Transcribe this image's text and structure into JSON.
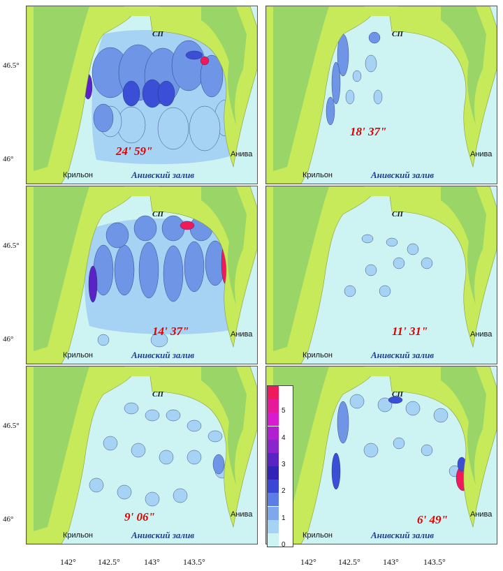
{
  "labels": {
    "port": "СП",
    "cape_krilon": "Крильон",
    "aniva": "Анива",
    "bay": "Анивский залив"
  },
  "panels": [
    {
      "time": "24' 59\""
    },
    {
      "time": "18' 37\""
    },
    {
      "time": "14' 37\""
    },
    {
      "time": "11' 31\""
    },
    {
      "time": "9' 06\""
    },
    {
      "time": "6' 49\""
    }
  ],
  "lat_ticks": [
    "46.5°",
    "46°"
  ],
  "lon_ticks": [
    "142°",
    "142.5°",
    "143°",
    "143.5°"
  ],
  "legend": {
    "labels": [
      "0",
      "1",
      "2",
      "3",
      "4",
      "5"
    ],
    "colors": [
      "#cdf3f2",
      "#a6d3f4",
      "#7fa8ec",
      "#5c7ce6",
      "#3a46d6",
      "#3222b8",
      "#5a24c4",
      "#8a24cc",
      "#b020d0",
      "#d81ad0",
      "#e8189a",
      "#ef1a5a"
    ]
  },
  "colors": {
    "water": "#cdf3f2",
    "land": "#c7ea5a",
    "mountain": "#8fd06a",
    "level1": "#a6d3f4",
    "level2": "#6f96e6",
    "level3": "#3a4fd6",
    "level4": "#5a24c4",
    "level5": "#ef1a5a"
  }
}
